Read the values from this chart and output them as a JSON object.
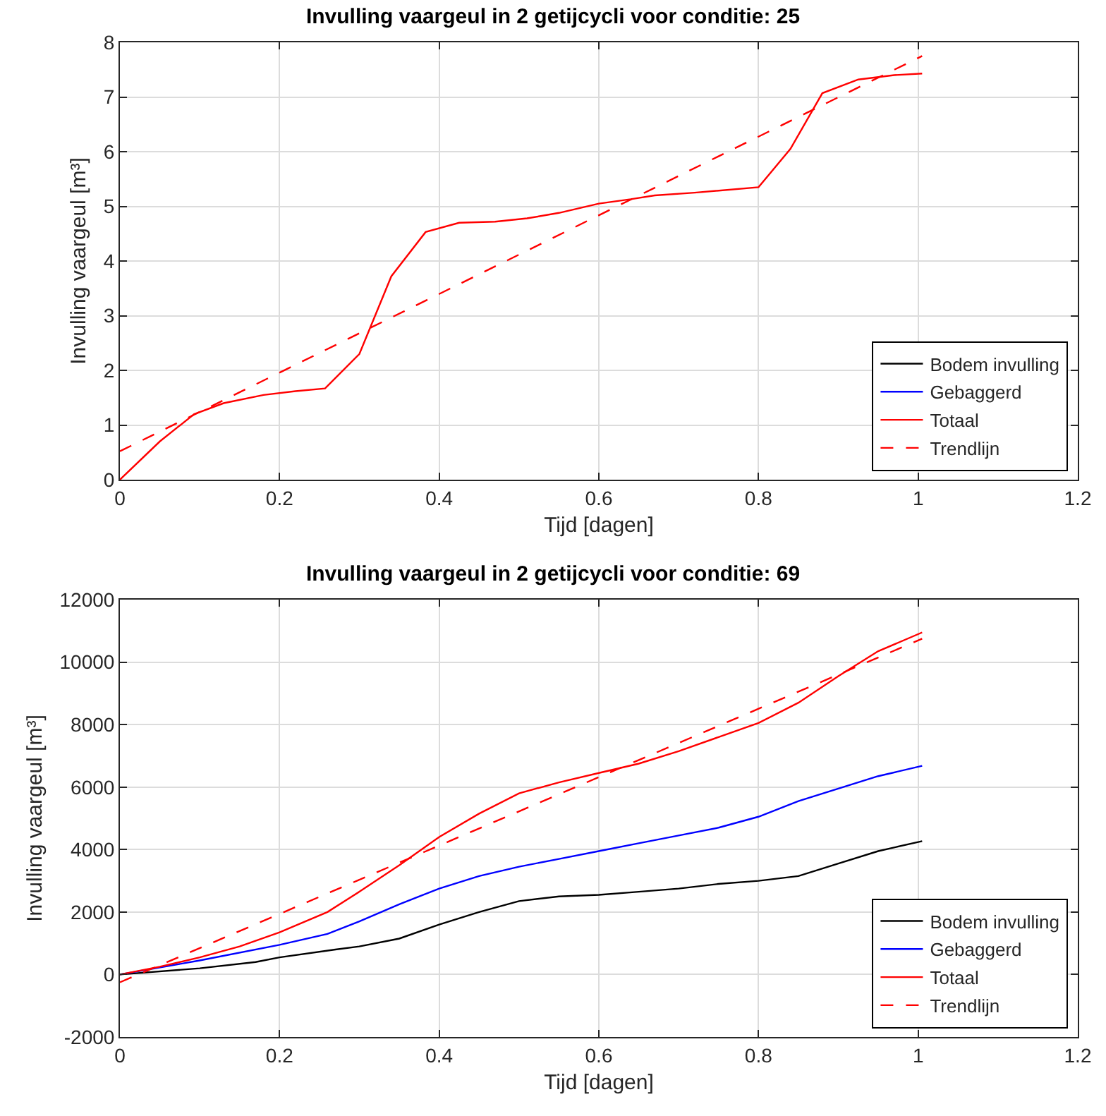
{
  "chart_data": [
    {
      "type": "line",
      "title": "Invulling vaargeul in 2 getijcycli voor conditie: 25",
      "xlabel": "Tijd [dagen]",
      "ylabel": "Invulling vaargeul [m³]",
      "xlim": [
        0,
        1.2
      ],
      "xticks": [
        0,
        0.2,
        0.4,
        0.6,
        0.8,
        1,
        1.2
      ],
      "ylim": [
        0,
        8
      ],
      "yticks": [
        0,
        1,
        2,
        3,
        4,
        5,
        6,
        7,
        8
      ],
      "grid": true,
      "legend": "bottom right",
      "marker": "none",
      "series": [
        {
          "name": "Bodem invulling",
          "color": "#000000",
          "line_style": "solid"
        },
        {
          "name": "Gebaggerd",
          "color": "#0000ff",
          "line_style": "solid"
        },
        {
          "name": "Totaal",
          "color": "#ff0000",
          "line_style": "solid",
          "x": [
            0,
            0.05,
            0.093,
            0.13,
            0.18,
            0.22,
            0.257,
            0.3,
            0.34,
            0.383,
            0.425,
            0.47,
            0.51,
            0.55,
            0.6,
            0.64,
            0.67,
            0.72,
            0.8,
            0.84,
            0.88,
            0.925,
            0.97,
            1.005
          ],
          "values": [
            0,
            0.7,
            1.2,
            1.4,
            1.55,
            1.62,
            1.67,
            2.3,
            3.72,
            4.53,
            4.7,
            4.72,
            4.78,
            4.88,
            5.05,
            5.13,
            5.2,
            5.25,
            5.35,
            6.05,
            7.07,
            7.32,
            7.4,
            7.43
          ]
        },
        {
          "name": "Trendlijn",
          "color": "#ff0000",
          "line_style": "dashed",
          "x": [
            0,
            1.005
          ],
          "values": [
            0.52,
            7.75
          ]
        }
      ]
    },
    {
      "type": "line",
      "title": "Invulling vaargeul in 2 getijcycli voor conditie: 69",
      "xlabel": "Tijd [dagen]",
      "ylabel": "Invulling vaargeul [m³]",
      "xlim": [
        0,
        1.2
      ],
      "xticks": [
        0,
        0.2,
        0.4,
        0.6,
        0.8,
        1,
        1.2
      ],
      "ylim": [
        -2000,
        12000
      ],
      "yticks": [
        -2000,
        0,
        2000,
        4000,
        6000,
        8000,
        10000,
        12000
      ],
      "grid": true,
      "legend": "bottom right",
      "marker": "none",
      "series": [
        {
          "name": "Bodem invulling",
          "color": "#000000",
          "line_style": "solid",
          "x": [
            0,
            0.1,
            0.17,
            0.2,
            0.27,
            0.3,
            0.35,
            0.4,
            0.45,
            0.5,
            0.55,
            0.6,
            0.65,
            0.7,
            0.75,
            0.8,
            0.85,
            0.9,
            0.95,
            1.005
          ],
          "values": [
            0,
            200,
            400,
            550,
            800,
            900,
            1150,
            1600,
            2000,
            2350,
            2500,
            2550,
            2650,
            2750,
            2900,
            3000,
            3150,
            3550,
            3950,
            4270
          ]
        },
        {
          "name": "Gebaggerd",
          "color": "#0000ff",
          "line_style": "solid",
          "x": [
            0,
            0.1,
            0.2,
            0.26,
            0.3,
            0.35,
            0.4,
            0.45,
            0.5,
            0.55,
            0.6,
            0.65,
            0.7,
            0.75,
            0.8,
            0.85,
            0.9,
            0.95,
            1.005
          ],
          "values": [
            0,
            450,
            950,
            1300,
            1700,
            2250,
            2750,
            3150,
            3450,
            3700,
            3950,
            4200,
            4450,
            4700,
            5050,
            5550,
            5950,
            6350,
            6680
          ]
        },
        {
          "name": "Totaal",
          "color": "#ff0000",
          "line_style": "solid",
          "x": [
            0,
            0.05,
            0.1,
            0.15,
            0.2,
            0.26,
            0.3,
            0.35,
            0.4,
            0.45,
            0.5,
            0.55,
            0.6,
            0.65,
            0.7,
            0.75,
            0.8,
            0.85,
            0.9,
            0.95,
            1.005
          ],
          "values": [
            0,
            250,
            550,
            900,
            1350,
            2000,
            2650,
            3500,
            4400,
            5150,
            5800,
            6150,
            6450,
            6750,
            7150,
            7600,
            8050,
            8700,
            9550,
            10350,
            10950
          ]
        },
        {
          "name": "Trendlijn",
          "color": "#ff0000",
          "line_style": "dashed",
          "x": [
            0,
            1.005
          ],
          "values": [
            -250,
            10750
          ]
        }
      ]
    }
  ]
}
